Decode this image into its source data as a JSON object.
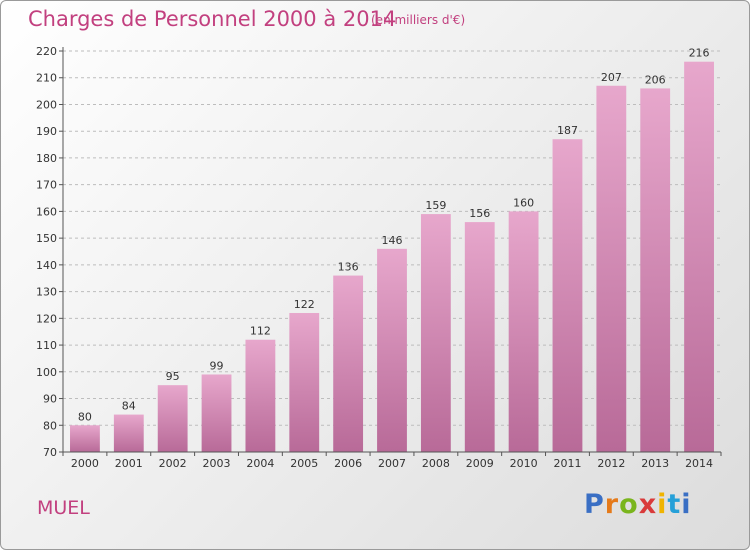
{
  "title": "Charges de Personnel 2000 à 2014",
  "unit_note": "(en milliers d'€)",
  "commune": "MUEL",
  "logo_text": "Proxiti",
  "colors": {
    "accent": "#c2407f",
    "bar_top": "#e7a7cc",
    "bar_bottom": "#b86a98",
    "grid": "#bdbdbd"
  },
  "chart_data": {
    "type": "bar",
    "title": "Charges de Personnel 2000 à 2014",
    "subtitle": "(en milliers d'€)",
    "xlabel": "",
    "ylabel": "",
    "categories": [
      "2000",
      "2001",
      "2002",
      "2003",
      "2004",
      "2005",
      "2006",
      "2007",
      "2008",
      "2009",
      "2010",
      "2011",
      "2012",
      "2013",
      "2014"
    ],
    "values": [
      80,
      84,
      95,
      99,
      112,
      122,
      136,
      146,
      159,
      156,
      160,
      187,
      207,
      206,
      216
    ],
    "ylim": [
      70,
      220
    ],
    "yticks": [
      70,
      80,
      90,
      100,
      110,
      120,
      130,
      140,
      150,
      160,
      170,
      180,
      190,
      200,
      210,
      220
    ],
    "grid": true,
    "legend": "none"
  }
}
